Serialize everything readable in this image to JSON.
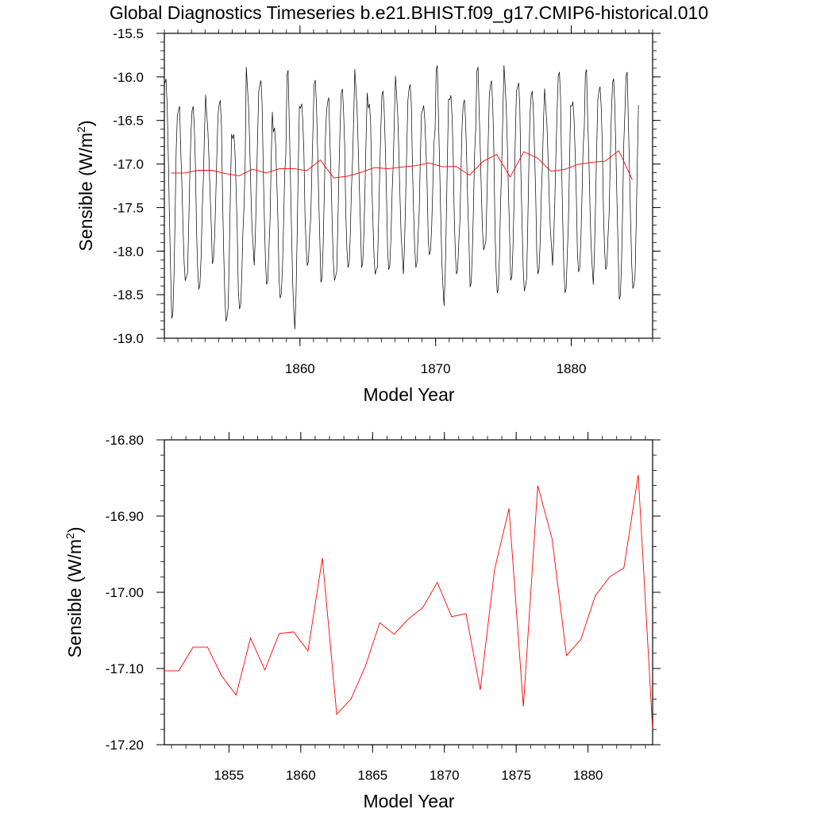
{
  "title": "Global Diagnostics Timeseries b.e21.BHIST.f09_g17.CMIP6-historical.010",
  "colors": {
    "monthly": "#000000",
    "annual": "#ff0000",
    "axis": "#000000",
    "background": "#ffffff"
  },
  "chart_data": [
    {
      "type": "line",
      "xlabel": "Model Year",
      "ylabel": "Sensible (W/m",
      "ylabel_sup": "2",
      "ylabel_close": ")",
      "xlim": [
        1850.0,
        1886.0
      ],
      "ylim": [
        -19.0,
        -15.5
      ],
      "xticks": [
        1860,
        1870,
        1880
      ],
      "xtick_labels": [
        "1860",
        "1870",
        "1880"
      ],
      "yticks": [
        -15.5,
        -16.0,
        -16.5,
        -17.0,
        -17.5,
        -18.0,
        -18.5,
        -19.0
      ],
      "ytick_labels": [
        "-15.5",
        "-16.0",
        "-16.5",
        "-17.0",
        "-17.5",
        "-18.0",
        "-18.5",
        "-19.0"
      ],
      "monthly_seasonal_max": [
        -15.9,
        -16.4,
        -16.3,
        -16.3,
        -16.3,
        -16.6,
        -15.95,
        -16.05,
        -16.5,
        -16.0,
        -16.3,
        -15.92,
        -16.3,
        -16.1,
        -16.0,
        -16.35,
        -16.1,
        -16.05,
        -16.1,
        -16.25,
        -15.95,
        -16.2,
        -16.15,
        -15.95,
        -16.0,
        -15.95,
        -16.1,
        -16.1,
        -16.2,
        -15.95,
        -16.2,
        -16.0,
        -16.1,
        -15.9,
        -16.0
      ],
      "monthly_seasonal_min": [
        -18.72,
        -18.45,
        -18.45,
        -18.05,
        -18.9,
        -18.65,
        -18.1,
        -18.45,
        -18.5,
        -18.82,
        -18.2,
        -18.3,
        -18.45,
        -18.2,
        -18.1,
        -18.35,
        -18.2,
        -18.2,
        -18.25,
        -18.0,
        -18.55,
        -18.3,
        -18.35,
        -18.1,
        -18.5,
        -18.25,
        -18.55,
        -18.25,
        -18.1,
        -18.55,
        -18.2,
        -18.3,
        -18.25,
        -18.5,
        -18.55
      ],
      "series": [
        {
          "x": [
            1850.5,
            1851.5,
            1852.5,
            1853.5,
            1854.5,
            1855.5,
            1856.5,
            1857.5,
            1858.5,
            1859.5,
            1860.5,
            1861.5,
            1862.5,
            1863.5,
            1864.5,
            1865.5,
            1866.5,
            1867.5,
            1868.5,
            1869.5,
            1870.5,
            1871.5,
            1872.5,
            1873.5,
            1874.5,
            1875.5,
            1876.5,
            1877.5,
            1878.5,
            1879.5,
            1880.5,
            1881.5,
            1882.5,
            1883.5,
            1884.5
          ],
          "values": [
            -17.103,
            -17.103,
            -17.072,
            -17.072,
            -17.11,
            -17.135,
            -17.06,
            -17.102,
            -17.054,
            -17.052,
            -17.077,
            -16.955,
            -17.16,
            -17.14,
            -17.097,
            -17.04,
            -17.055,
            -17.035,
            -17.02,
            -16.987,
            -17.032,
            -17.028,
            -17.128,
            -16.97,
            -16.89,
            -17.15,
            -16.86,
            -16.93,
            -17.083,
            -17.062,
            -17.005,
            -16.98,
            -16.968,
            -16.846,
            -17.18
          ]
        }
      ]
    },
    {
      "type": "line",
      "xlabel": "Model Year",
      "ylabel": "Sensible (W/m",
      "ylabel_sup": "2",
      "ylabel_close": ")",
      "xlim": [
        1850.5,
        1884.5
      ],
      "ylim": [
        -17.2,
        -16.8
      ],
      "xticks": [
        1855,
        1860,
        1865,
        1870,
        1875,
        1880
      ],
      "xtick_labels": [
        "1855",
        "1860",
        "1865",
        "1870",
        "1875",
        "1880"
      ],
      "yticks": [
        -16.8,
        -16.9,
        -17.0,
        -17.1,
        -17.2
      ],
      "ytick_labels": [
        "-16.80",
        "-16.90",
        "-17.00",
        "-17.10",
        "-17.20"
      ],
      "series": [
        {
          "x": [
            1850.5,
            1851.5,
            1852.5,
            1853.5,
            1854.5,
            1855.5,
            1856.5,
            1857.5,
            1858.5,
            1859.5,
            1860.5,
            1861.5,
            1862.5,
            1863.5,
            1864.5,
            1865.5,
            1866.5,
            1867.5,
            1868.5,
            1869.5,
            1870.5,
            1871.5,
            1872.5,
            1873.5,
            1874.5,
            1875.5,
            1876.5,
            1877.5,
            1878.5,
            1879.5,
            1880.5,
            1881.5,
            1882.5,
            1883.5,
            1884.5
          ],
          "values": [
            -17.103,
            -17.103,
            -17.072,
            -17.072,
            -17.11,
            -17.135,
            -17.06,
            -17.102,
            -17.054,
            -17.052,
            -17.077,
            -16.955,
            -17.16,
            -17.14,
            -17.097,
            -17.04,
            -17.055,
            -17.035,
            -17.02,
            -16.987,
            -17.032,
            -17.028,
            -17.128,
            -16.97,
            -16.89,
            -17.15,
            -16.86,
            -16.93,
            -17.083,
            -17.062,
            -17.005,
            -16.98,
            -16.968,
            -16.846,
            -17.18
          ]
        }
      ]
    }
  ]
}
